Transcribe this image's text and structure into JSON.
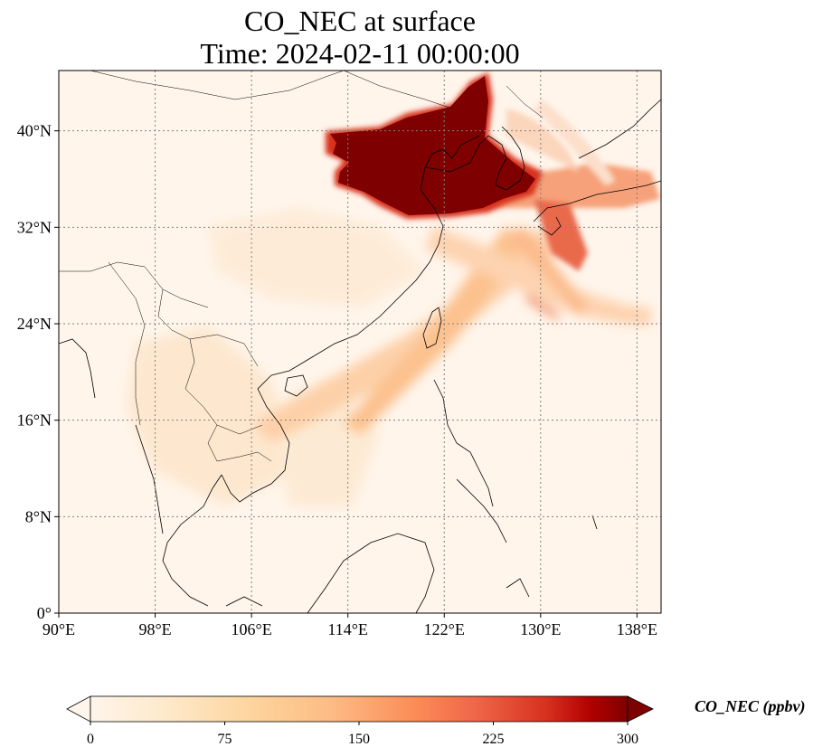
{
  "title": {
    "line1": "CO_NEC at surface",
    "line2": "Time: 2024-02-11 00:00:00"
  },
  "map": {
    "extent": {
      "lon_min": 90,
      "lon_max": 140,
      "lat_min": 0,
      "lat_max": 45
    },
    "lon_ticks": [
      {
        "value": 90,
        "label": "90°E"
      },
      {
        "value": 98,
        "label": "98°E"
      },
      {
        "value": 106,
        "label": "106°E"
      },
      {
        "value": 114,
        "label": "114°E"
      },
      {
        "value": 122,
        "label": "122°E"
      },
      {
        "value": 130,
        "label": "130°E"
      },
      {
        "value": 138,
        "label": "138°E"
      }
    ],
    "lat_ticks": [
      {
        "value": 0,
        "label": "0°"
      },
      {
        "value": 8,
        "label": "8°N"
      },
      {
        "value": 16,
        "label": "16°N"
      },
      {
        "value": 24,
        "label": "24°N"
      },
      {
        "value": 32,
        "label": "32°N"
      },
      {
        "value": 40,
        "label": "40°N"
      }
    ],
    "gridlines": true,
    "colormap": "OrRd",
    "colors": {
      "background": "#fff5eb",
      "low": "#fee8c8",
      "mid": "#fdbb84",
      "high": "#ef6548",
      "very_high": "#b30000",
      "max": "#7f0000",
      "coastline": "#000000",
      "grid": "#808080"
    }
  },
  "colorbar": {
    "label": "CO_NEC (ppbv)",
    "min": 0,
    "max": 300,
    "extend": "both",
    "ticks": [
      {
        "value": 0,
        "label": "0"
      },
      {
        "value": 75,
        "label": "75"
      },
      {
        "value": 150,
        "label": "150"
      },
      {
        "value": 225,
        "label": "225"
      },
      {
        "value": 300,
        "label": "300"
      }
    ]
  }
}
